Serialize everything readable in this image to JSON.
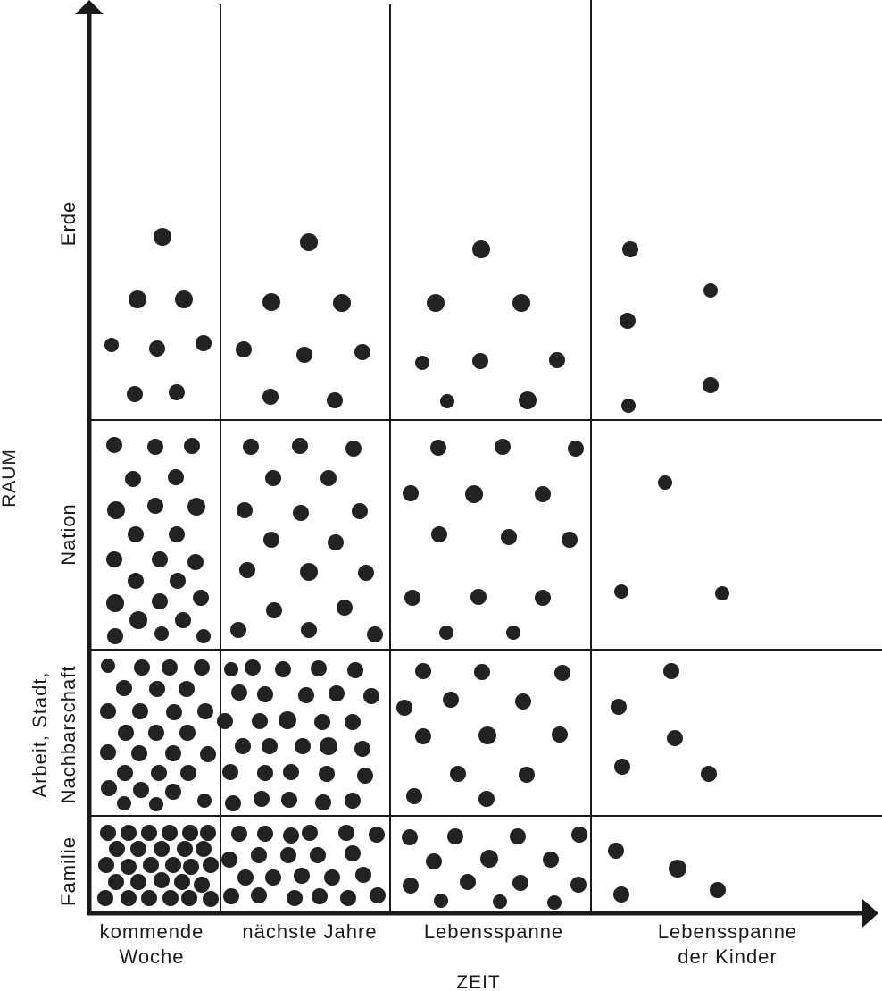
{
  "axes": {
    "y_title": "RAUM",
    "x_title": "ZEIT"
  },
  "x_categories": [
    {
      "line1": "kommende",
      "line2": "Woche"
    },
    {
      "line1": "nächste Jahre",
      "line2": ""
    },
    {
      "line1": "Lebensspanne",
      "line2": ""
    },
    {
      "line1": "Lebensspanne",
      "line2": "der Kinder"
    }
  ],
  "y_categories": [
    {
      "line1": "Familie",
      "line2": ""
    },
    {
      "line1": "Arbeit, Stadt,",
      "line2": "Nachbarschaft"
    },
    {
      "line1": "Nation",
      "line2": ""
    },
    {
      "line1": "Erde",
      "line2": ""
    }
  ],
  "colors": {
    "ink": "#1a1a1a",
    "dot": "#222222",
    "background": "#ffffff"
  }
}
